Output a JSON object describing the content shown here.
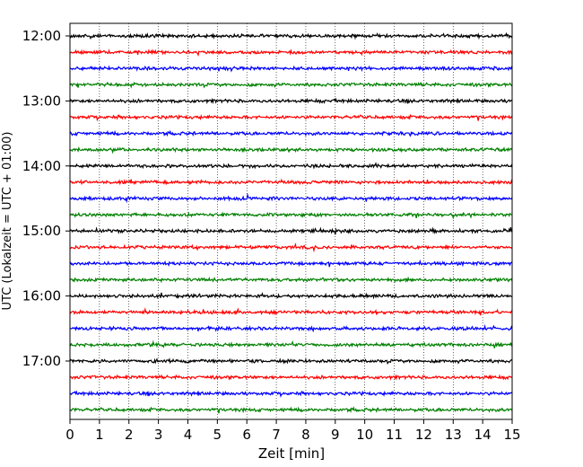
{
  "chart_data": {
    "type": "line",
    "title": "",
    "xlabel": "Zeit  [min]",
    "ylabel": "UTC (Lokalzeit = UTC + 01:00)",
    "xlim": [
      0,
      15
    ],
    "x_ticks": [
      0,
      1,
      2,
      3,
      4,
      5,
      6,
      7,
      8,
      9,
      10,
      11,
      12,
      13,
      14,
      15
    ],
    "x_tick_labels": [
      "0",
      "1",
      "2",
      "3",
      "4",
      "5",
      "6",
      "7",
      "8",
      "9",
      "10",
      "11",
      "12",
      "13",
      "14",
      "15"
    ],
    "y_tick_labels": [
      "12:00",
      "13:00",
      "14:00",
      "15:00",
      "16:00",
      "17:00"
    ],
    "y_tick_rows": [
      0,
      4,
      8,
      12,
      16,
      20
    ],
    "row_count": 24,
    "row_interval_minutes": 15,
    "first_row_time": "12:00",
    "color_cycle": [
      "#000000",
      "#ff0000",
      "#0000ff",
      "#008000"
    ],
    "vertical_grid": true,
    "grid_style": "dotted",
    "series_description": "one seismogram trace per 15-minute interval, amplitude noise around baseline"
  }
}
